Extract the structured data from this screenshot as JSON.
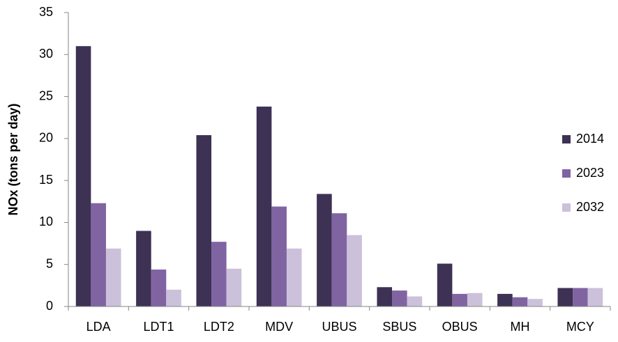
{
  "chart_data": {
    "type": "bar",
    "y_label": "NOx (tons per day)",
    "categories": [
      "LDA",
      "LDT1",
      "LDT2",
      "MDV",
      "UBUS",
      "SBUS",
      "OBUS",
      "MH",
      "MCY"
    ],
    "series": [
      {
        "name": "2014",
        "color": "#3d3154",
        "values": [
          31.0,
          9.0,
          20.4,
          23.8,
          13.4,
          2.3,
          5.1,
          1.5,
          2.2
        ]
      },
      {
        "name": "2023",
        "color": "#8064a2",
        "values": [
          12.3,
          4.4,
          7.7,
          11.9,
          11.1,
          1.9,
          1.5,
          1.1,
          2.2
        ]
      },
      {
        "name": "2032",
        "color": "#ccc1da",
        "values": [
          6.9,
          2.0,
          4.5,
          6.9,
          8.5,
          1.2,
          1.6,
          0.9,
          2.2
        ]
      }
    ],
    "ylim": [
      0,
      35
    ],
    "yticks": [
      0,
      5,
      10,
      15,
      20,
      25,
      30,
      35
    ],
    "grid": false,
    "legend": "right"
  }
}
